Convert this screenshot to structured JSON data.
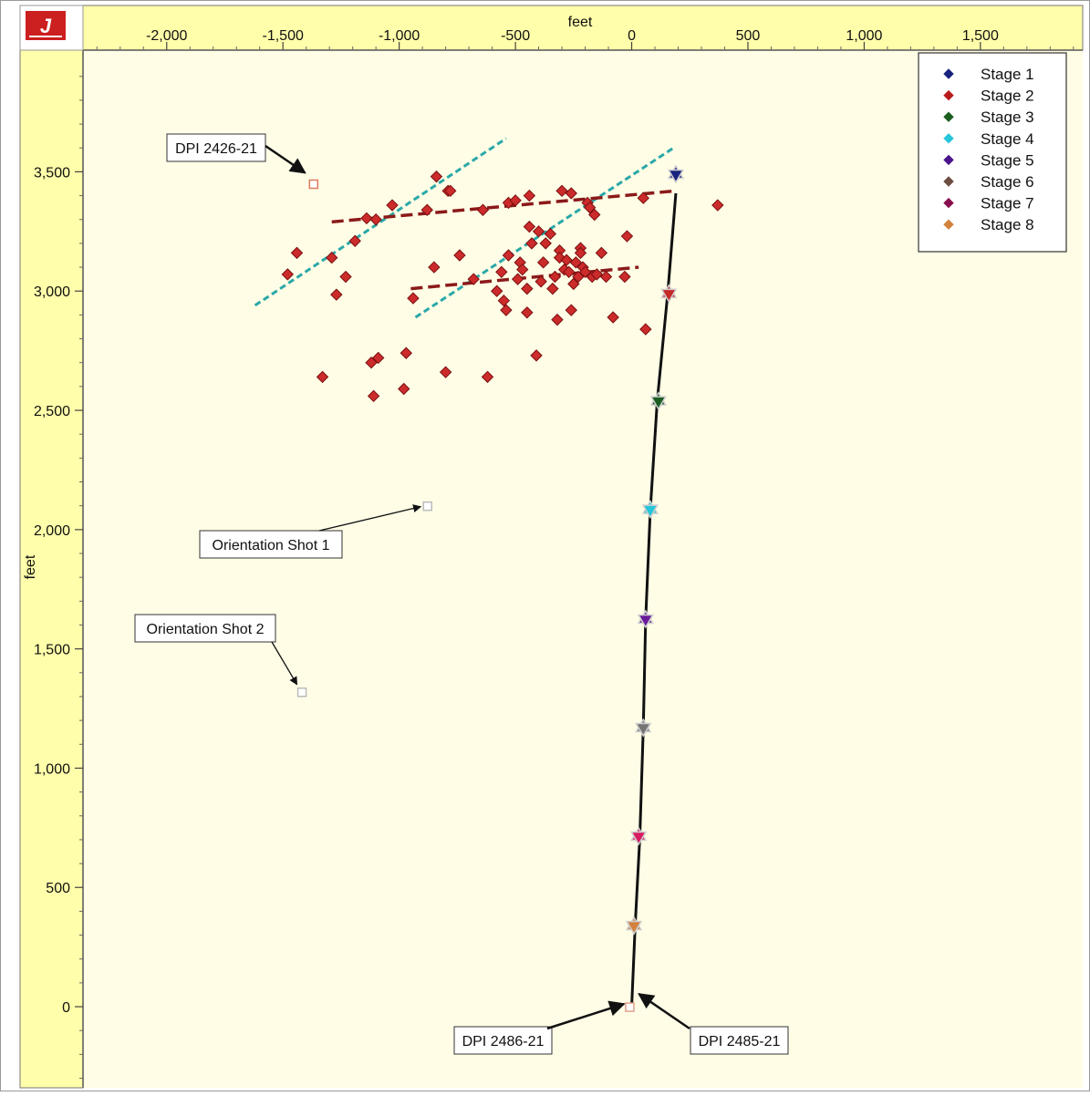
{
  "chart_data": {
    "type": "scatter",
    "x_axis": {
      "label": "feet",
      "ticks": [
        -2000,
        -1500,
        -1000,
        -500,
        0,
        500,
        1000,
        1500
      ],
      "tick_labels": [
        "-2,000",
        "-1,500",
        "-1,000",
        "-500",
        "0",
        "500",
        "1,000",
        "1,500"
      ],
      "range": [
        -2360,
        1940
      ]
    },
    "y_axis": {
      "label": "feet",
      "ticks": [
        0,
        500,
        1000,
        1500,
        2000,
        2500,
        3000,
        3500
      ],
      "tick_labels": [
        "0",
        "500",
        "1,000",
        "1,500",
        "2,000",
        "2,500",
        "3,000",
        "3,500"
      ],
      "range": [
        -340,
        4010
      ]
    },
    "legend": {
      "placement": "top-right",
      "entries": [
        {
          "name": "Stage 1",
          "color": "#1a237e"
        },
        {
          "name": "Stage 2",
          "color": "#b71c1c"
        },
        {
          "name": "Stage 3",
          "color": "#1b5e20"
        },
        {
          "name": "Stage 4",
          "color": "#26c6da"
        },
        {
          "name": "Stage 5",
          "color": "#4a148c"
        },
        {
          "name": "Stage 6",
          "color": "#6d4c41"
        },
        {
          "name": "Stage 7",
          "color": "#880e4f"
        },
        {
          "name": "Stage 8",
          "color": "#d2823c"
        }
      ]
    },
    "well_path": [
      [
        0,
        0
      ],
      [
        15,
        340
      ],
      [
        35,
        710
      ],
      [
        50,
        1170
      ],
      [
        60,
        1620
      ],
      [
        80,
        2080
      ],
      [
        110,
        2540
      ],
      [
        155,
        2990
      ],
      [
        190,
        3410
      ]
    ],
    "stage_points": [
      {
        "stage": "Stage 1",
        "x": 190,
        "y": 3490,
        "color": "#1a237e"
      },
      {
        "stage": "Stage 2",
        "x": 160,
        "y": 2990,
        "color": "#c62828"
      },
      {
        "stage": "Stage 3",
        "x": 115,
        "y": 2540,
        "color": "#1b5e20"
      },
      {
        "stage": "Stage 4",
        "x": 80,
        "y": 2085,
        "color": "#26c6da"
      },
      {
        "stage": "Stage 5",
        "x": 60,
        "y": 1625,
        "color": "#6a1b9a"
      },
      {
        "stage": "Stage 6",
        "x": 50,
        "y": 1170,
        "color": "#757575"
      },
      {
        "stage": "Stage 7",
        "x": 30,
        "y": 715,
        "color": "#d81b60"
      },
      {
        "stage": "Stage 8",
        "x": 10,
        "y": 340,
        "color": "#d2823c"
      }
    ],
    "events_stage2": [
      [
        -1480,
        3070
      ],
      [
        -1440,
        3160
      ],
      [
        -1330,
        2640
      ],
      [
        -1290,
        3140
      ],
      [
        -1270,
        2985
      ],
      [
        -1230,
        3060
      ],
      [
        -1190,
        3210
      ],
      [
        -1140,
        3305
      ],
      [
        -1120,
        2700
      ],
      [
        -1110,
        2560
      ],
      [
        -1100,
        3300
      ],
      [
        -1090,
        2720
      ],
      [
        -1030,
        3360
      ],
      [
        -980,
        2590
      ],
      [
        -970,
        2740
      ],
      [
        -940,
        2970
      ],
      [
        -880,
        3340
      ],
      [
        -850,
        3100
      ],
      [
        -840,
        3480
      ],
      [
        -800,
        2660
      ],
      [
        -790,
        3420
      ],
      [
        -780,
        3420
      ],
      [
        -740,
        3150
      ],
      [
        -680,
        3050
      ],
      [
        -640,
        3340
      ],
      [
        -620,
        2640
      ],
      [
        -580,
        3000
      ],
      [
        -560,
        3080
      ],
      [
        -550,
        2960
      ],
      [
        -540,
        2920
      ],
      [
        -530,
        3370
      ],
      [
        -530,
        3150
      ],
      [
        -500,
        3380
      ],
      [
        -490,
        3050
      ],
      [
        -480,
        3120
      ],
      [
        -470,
        3090
      ],
      [
        -450,
        3010
      ],
      [
        -450,
        2910
      ],
      [
        -440,
        3400
      ],
      [
        -440,
        3270
      ],
      [
        -430,
        3200
      ],
      [
        -410,
        2730
      ],
      [
        -400,
        3250
      ],
      [
        -390,
        3040
      ],
      [
        -380,
        3120
      ],
      [
        -370,
        3200
      ],
      [
        -350,
        3240
      ],
      [
        -340,
        3010
      ],
      [
        -330,
        3060
      ],
      [
        -320,
        2880
      ],
      [
        -310,
        3170
      ],
      [
        -310,
        3140
      ],
      [
        -300,
        3420
      ],
      [
        -290,
        3090
      ],
      [
        -280,
        3130
      ],
      [
        -270,
        3080
      ],
      [
        -260,
        3410
      ],
      [
        -260,
        2920
      ],
      [
        -250,
        3030
      ],
      [
        -240,
        3120
      ],
      [
        -230,
        3060
      ],
      [
        -220,
        3180
      ],
      [
        -220,
        3160
      ],
      [
        -210,
        3100
      ],
      [
        -200,
        3080
      ],
      [
        -190,
        3370
      ],
      [
        -180,
        3350
      ],
      [
        -170,
        3060
      ],
      [
        -160,
        3320
      ],
      [
        -150,
        3070
      ],
      [
        -130,
        3160
      ],
      [
        -110,
        3060
      ],
      [
        -80,
        2890
      ],
      [
        -30,
        3060
      ],
      [
        -20,
        3230
      ],
      [
        50,
        3390
      ],
      [
        60,
        2840
      ],
      [
        370,
        3360
      ]
    ],
    "trend_lines_dashed_red": [
      [
        [
          -1290,
          3290
        ],
        [
          190,
          3420
        ]
      ],
      [
        [
          -950,
          3010
        ],
        [
          30,
          3100
        ]
      ]
    ],
    "trend_lines_dotted_cyan": [
      [
        [
          -1620,
          2940
        ],
        [
          -540,
          3640
        ]
      ],
      [
        [
          -930,
          2890
        ],
        [
          180,
          3600
        ]
      ]
    ],
    "wells": [
      {
        "label": "DPI 2426-21",
        "x": -1370,
        "y": 3450
      },
      {
        "label": "DPI 2486-21",
        "x": -10,
        "y": 0
      },
      {
        "label": "DPI 2485-21",
        "x": 0,
        "y": 0
      }
    ],
    "orientation_shots": [
      {
        "label": "Orientation Shot 1",
        "x": -880,
        "y": 2100
      },
      {
        "label": "Orientation Shot 2",
        "x": -1420,
        "y": 1320
      }
    ],
    "grid": false
  },
  "logo": {
    "glyph": "J"
  }
}
